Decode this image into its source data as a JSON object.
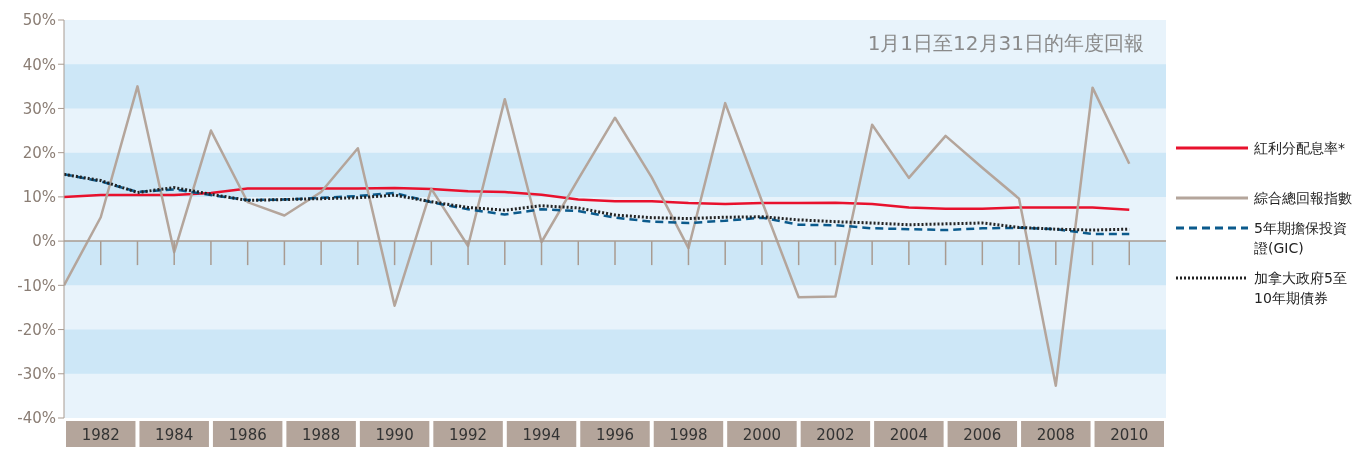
{
  "chart_data": {
    "type": "line",
    "title": "1月1日至12月31日的年度回報",
    "x": [
      1981,
      1982,
      1983,
      1984,
      1985,
      1986,
      1987,
      1988,
      1989,
      1990,
      1991,
      1992,
      1993,
      1994,
      1995,
      1996,
      1997,
      1998,
      1999,
      2000,
      2001,
      2002,
      2003,
      2004,
      2005,
      2006,
      2007,
      2008,
      2009,
      2010
    ],
    "series": [
      {
        "name": "紅利分配息率*",
        "color": "#e8112d",
        "line_style": "solid",
        "values": [
          10.0,
          10.4,
          10.4,
          10.4,
          10.9,
          11.9,
          11.9,
          11.9,
          11.9,
          12.0,
          11.8,
          11.3,
          11.1,
          10.5,
          9.4,
          9.0,
          9.0,
          8.6,
          8.4,
          8.6,
          8.6,
          8.7,
          8.4,
          7.6,
          7.3,
          7.3,
          7.6,
          7.6,
          7.6,
          7.1
        ]
      },
      {
        "name": "綜合總回報指數",
        "color": "#b4a59b",
        "line_style": "solid",
        "values": [
          -10.0,
          5.4,
          35.0,
          -2.5,
          25.0,
          8.8,
          5.8,
          11.1,
          21.0,
          -14.6,
          11.8,
          -1.1,
          32.1,
          -0.2,
          14.0,
          27.9,
          14.4,
          -1.6,
          31.2,
          9.0,
          -12.7,
          -12.5,
          26.3,
          14.3,
          23.8,
          16.6,
          9.6,
          -32.7,
          34.7,
          17.5
        ]
      },
      {
        "name": "5年期擔保投資證(GIC)",
        "color": "#0b5a8c",
        "line_style": "dashed",
        "values": [
          15.1,
          13.5,
          11.1,
          11.7,
          10.4,
          9.3,
          9.4,
          9.8,
          10.2,
          10.9,
          8.8,
          7.2,
          6.0,
          7.2,
          6.8,
          5.3,
          4.4,
          4.1,
          4.6,
          5.3,
          3.7,
          3.6,
          2.9,
          2.7,
          2.5,
          2.9,
          3.0,
          2.7,
          1.6,
          1.6
        ]
      },
      {
        "name": "加拿大政府5至10年期債券",
        "color": "#222222",
        "line_style": "dotted",
        "values": [
          15.1,
          13.7,
          11.0,
          12.1,
          10.6,
          9.2,
          9.4,
          9.6,
          9.8,
          10.4,
          8.9,
          7.6,
          7.0,
          8.0,
          7.5,
          5.9,
          5.3,
          5.1,
          5.4,
          5.5,
          4.8,
          4.4,
          4.1,
          3.7,
          3.9,
          4.1,
          3.1,
          2.7,
          2.5,
          2.7
        ]
      }
    ],
    "xlim": [
      1981,
      2011
    ],
    "xticks": [
      1982,
      1984,
      1986,
      1988,
      1990,
      1992,
      1994,
      1996,
      1998,
      2000,
      2002,
      2004,
      2006,
      2008,
      2010
    ],
    "ylim": [
      -40,
      50
    ],
    "yticks": [
      {
        "value": -40,
        "label": "-40%"
      },
      {
        "value": -30,
        "label": "-30%"
      },
      {
        "value": -20,
        "label": "-20%"
      },
      {
        "value": -10,
        "label": "-10%"
      },
      {
        "value": 0,
        "label": "0%"
      },
      {
        "value": 10,
        "label": "10%"
      },
      {
        "value": 20,
        "label": "20%"
      },
      {
        "value": 30,
        "label": "30%"
      },
      {
        "value": 40,
        "label": "40%"
      },
      {
        "value": 50,
        "label": "50%"
      }
    ],
    "bands": [
      {
        "axis": "y",
        "from": 30,
        "to": 40,
        "color": "#cde7f7"
      },
      {
        "axis": "y",
        "from": 10,
        "to": 20,
        "color": "#cde7f7"
      },
      {
        "axis": "y",
        "from": -10,
        "to": 0,
        "color": "#cde7f7"
      },
      {
        "axis": "y",
        "from": -30,
        "to": -20,
        "color": "#cde7f7"
      }
    ],
    "legend": "right",
    "marker": "none"
  }
}
